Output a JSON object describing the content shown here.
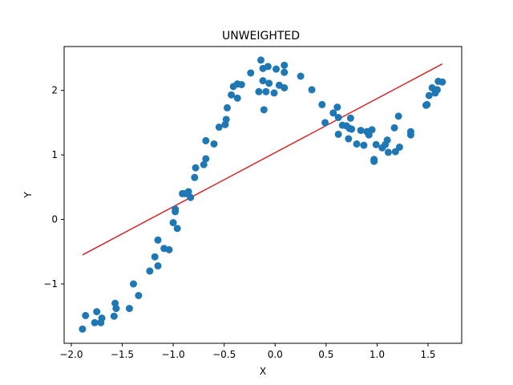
{
  "chart_data": {
    "type": "scatter",
    "title": "UNWEIGHTED",
    "xlabel": "X",
    "ylabel": "Y",
    "xlim": [
      -2.07,
      1.83
    ],
    "ylim": [
      -1.92,
      2.68
    ],
    "xticks": [
      -2.0,
      -1.5,
      -1.0,
      -0.5,
      0.0,
      0.5,
      1.0,
      1.5
    ],
    "xtick_labels": [
      "−2.0",
      "−1.5",
      "−1.0",
      "−0.5",
      "0.0",
      "0.5",
      "1.0",
      "1.5"
    ],
    "yticks": [
      -1,
      0,
      1,
      2
    ],
    "ytick_labels": [
      "−1",
      "0",
      "1",
      "2"
    ],
    "grid": false,
    "legend": "none",
    "colors": {
      "points": "#1f77b4",
      "fit_line": "#d62728"
    },
    "series": [
      {
        "type": "scatter",
        "points": [
          [
            -1.89,
            -1.7
          ],
          [
            -1.86,
            -1.49
          ],
          [
            -1.77,
            -1.6
          ],
          [
            -1.75,
            -1.43
          ],
          [
            -1.71,
            -1.6
          ],
          [
            -1.7,
            -1.53
          ],
          [
            -1.58,
            -1.5
          ],
          [
            -1.57,
            -1.3
          ],
          [
            -1.56,
            -1.38
          ],
          [
            -1.43,
            -1.38
          ],
          [
            -1.39,
            -1.0
          ],
          [
            -1.34,
            -1.18
          ],
          [
            -1.23,
            -0.8
          ],
          [
            -1.18,
            -0.58
          ],
          [
            -1.15,
            -0.72
          ],
          [
            -1.15,
            -0.32
          ],
          [
            -1.09,
            -0.45
          ],
          [
            -1.04,
            -0.47
          ],
          [
            -1.0,
            -0.05
          ],
          [
            -0.98,
            0.12
          ],
          [
            -0.98,
            0.16
          ],
          [
            -0.96,
            -0.14
          ],
          [
            -0.91,
            0.4
          ],
          [
            -0.88,
            0.4
          ],
          [
            -0.85,
            0.43
          ],
          [
            -0.83,
            0.34
          ],
          [
            -0.79,
            0.65
          ],
          [
            -0.78,
            0.8
          ],
          [
            -0.7,
            0.85
          ],
          [
            -0.68,
            0.94
          ],
          [
            -0.68,
            1.22
          ],
          [
            -0.6,
            1.17
          ],
          [
            -0.55,
            1.43
          ],
          [
            -0.49,
            1.47
          ],
          [
            -0.48,
            1.55
          ],
          [
            -0.47,
            1.73
          ],
          [
            -0.43,
            1.93
          ],
          [
            -0.41,
            2.06
          ],
          [
            -0.37,
            2.1
          ],
          [
            -0.37,
            1.88
          ],
          [
            -0.33,
            2.09
          ],
          [
            -0.24,
            2.27
          ],
          [
            -0.16,
            1.98
          ],
          [
            -0.14,
            2.47
          ],
          [
            -0.12,
            2.34
          ],
          [
            -0.12,
            2.15
          ],
          [
            -0.11,
            1.7
          ],
          [
            -0.09,
            1.98
          ],
          [
            -0.07,
            2.37
          ],
          [
            -0.06,
            2.11
          ],
          [
            -0.01,
            1.96
          ],
          [
            0.01,
            2.33
          ],
          [
            0.04,
            2.08
          ],
          [
            0.09,
            2.39
          ],
          [
            0.09,
            2.28
          ],
          [
            0.09,
            2.04
          ],
          [
            0.25,
            2.22
          ],
          [
            0.36,
            2.01
          ],
          [
            0.46,
            1.78
          ],
          [
            0.49,
            1.5
          ],
          [
            0.57,
            1.65
          ],
          [
            0.61,
            1.74
          ],
          [
            0.62,
            1.32
          ],
          [
            0.62,
            1.58
          ],
          [
            0.66,
            1.46
          ],
          [
            0.7,
            1.45
          ],
          [
            0.72,
            1.25
          ],
          [
            0.73,
            1.41
          ],
          [
            0.74,
            1.57
          ],
          [
            0.75,
            1.4
          ],
          [
            0.8,
            1.17
          ],
          [
            0.84,
            1.38
          ],
          [
            0.87,
            1.15
          ],
          [
            0.9,
            1.36
          ],
          [
            0.91,
            1.36
          ],
          [
            0.92,
            1.31
          ],
          [
            0.95,
            1.39
          ],
          [
            0.97,
            0.9
          ],
          [
            0.97,
            0.93
          ],
          [
            0.99,
            1.16
          ],
          [
            1.05,
            1.11
          ],
          [
            1.08,
            1.16
          ],
          [
            1.1,
            1.23
          ],
          [
            1.11,
            1.04
          ],
          [
            1.17,
            1.42
          ],
          [
            1.18,
            1.05
          ],
          [
            1.21,
            1.6
          ],
          [
            1.22,
            1.12
          ],
          [
            1.33,
            1.31
          ],
          [
            1.33,
            1.36
          ],
          [
            1.48,
            1.77
          ],
          [
            1.49,
            1.78
          ],
          [
            1.51,
            1.92
          ],
          [
            1.54,
            2.04
          ],
          [
            1.57,
            1.96
          ],
          [
            1.59,
            2.01
          ],
          [
            1.6,
            2.14
          ],
          [
            1.64,
            2.13
          ]
        ]
      },
      {
        "type": "line",
        "points": [
          [
            -1.89,
            -0.55
          ],
          [
            1.64,
            2.41
          ]
        ]
      }
    ]
  }
}
